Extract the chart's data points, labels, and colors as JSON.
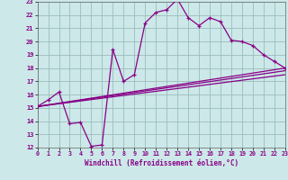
{
  "xlabel": "Windchill (Refroidissement éolien,°C)",
  "bg_color": "#cce8e8",
  "grid_color": "#9bbcbc",
  "line_color": "#880088",
  "xmin": 0,
  "xmax": 23,
  "ymin": 12,
  "ymax": 23,
  "line1_x": [
    0,
    1,
    2,
    3,
    4,
    5,
    6,
    7,
    8,
    9,
    10,
    11,
    12,
    13,
    14,
    15,
    16,
    17,
    18,
    19,
    20,
    21,
    22,
    23
  ],
  "line1_y": [
    15.1,
    15.6,
    16.2,
    13.8,
    13.9,
    12.1,
    12.2,
    19.4,
    17.0,
    17.5,
    21.4,
    22.2,
    22.4,
    23.2,
    21.8,
    21.2,
    21.8,
    21.5,
    20.1,
    20.0,
    19.7,
    19.0,
    18.5,
    18.0
  ],
  "line2_x": [
    0,
    23
  ],
  "line2_y": [
    15.1,
    18.0
  ],
  "line3_x": [
    0,
    23
  ],
  "line3_y": [
    15.1,
    17.5
  ],
  "line4_x": [
    0,
    23
  ],
  "line4_y": [
    15.1,
    17.8
  ],
  "xtick_fontsize": 4.8,
  "ytick_fontsize": 5.0,
  "xlabel_fontsize": 5.5
}
